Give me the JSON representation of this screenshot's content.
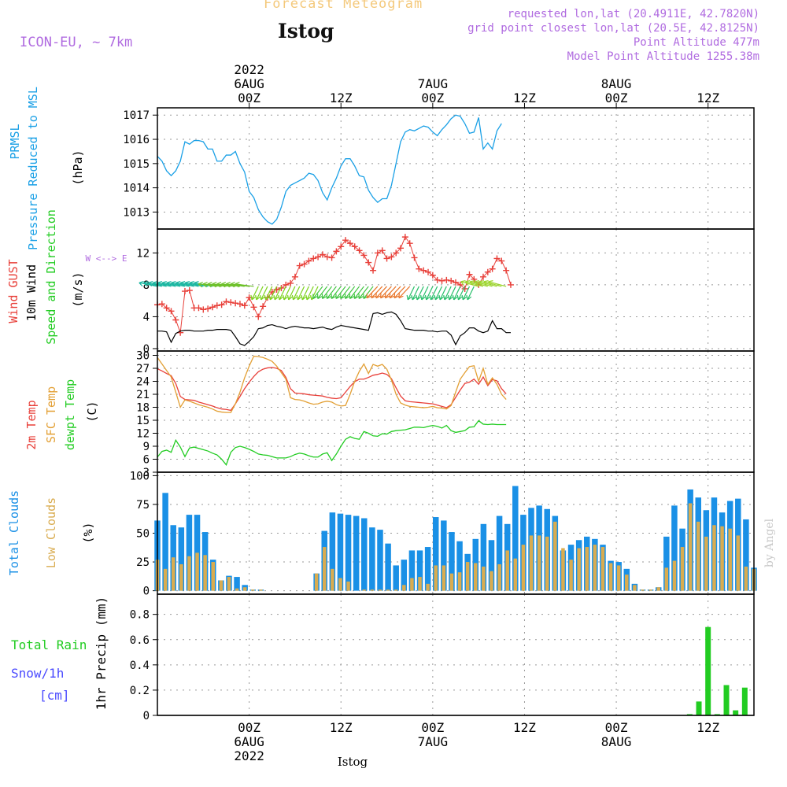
{
  "header": {
    "product": "Forecast Meteogram",
    "location": "Istog",
    "model": "ICON-EU, ~ 7km",
    "requested": "requested lon,lat (20.4911E, 42.7820N)",
    "grid": "grid point closest lon,lat (20.5E, 42.8125N)",
    "point_altitude": "Point Altitude 477m",
    "model_altitude": "Model Point Altitude 1255.38m"
  },
  "footer": {
    "location": "Istog",
    "credit": "by Angel"
  },
  "colors": {
    "pressure": "#1aa0e6",
    "gust": "#e8403a",
    "wind": "#000000",
    "temp": "#e8403a",
    "sfc": "#e3a035",
    "dew": "#22cc22",
    "cloud": "#1a90e6",
    "low": "#d9ac50",
    "rain": "#22cc22",
    "snow": "#4a4aff",
    "label_purple": "#b06be0",
    "header_orange": "#f4c97c"
  },
  "chart_data": {
    "type": "meteogram",
    "time_axis": {
      "hours_start": -10,
      "hours_end": 55,
      "top_ticks": [
        {
          "hour": 0,
          "lines": [
            "2022",
            "6AUG",
            "00Z"
          ]
        },
        {
          "hour": 10,
          "lines": [
            "12Z"
          ]
        },
        {
          "hour": 20,
          "lines": [
            "7AUG",
            "00Z"
          ]
        },
        {
          "hour": 30,
          "lines": [
            "12Z"
          ]
        },
        {
          "hour": 40,
          "lines": [
            "8AUG",
            "00Z"
          ]
        },
        {
          "hour": 50,
          "lines": [
            "12Z"
          ]
        }
      ],
      "bottom_ticks": [
        {
          "hour": 0,
          "lines": [
            "00Z",
            "6AUG",
            "2022"
          ]
        },
        {
          "hour": 10,
          "lines": [
            "12Z"
          ]
        },
        {
          "hour": 20,
          "lines": [
            "00Z",
            "7AUG"
          ]
        },
        {
          "hour": 30,
          "lines": [
            "12Z"
          ]
        },
        {
          "hour": 40,
          "lines": [
            "00Z",
            "8AUG"
          ]
        },
        {
          "hour": 50,
          "lines": [
            "12Z"
          ]
        }
      ],
      "step_hours": 0.5
    },
    "panels": [
      {
        "id": "pressure",
        "labels": [
          "PRMSL",
          "Pressure Reduced to MSL"
        ],
        "unit": "(hPa)",
        "ylim": [
          1012.3,
          1017.3
        ],
        "yticks": [
          1013,
          1014,
          1015,
          1016,
          1017
        ],
        "series": [
          {
            "name": "PRMSL",
            "color_key": "pressure",
            "kind": "line",
            "values": [
              1015.3,
              1015.1,
              1014.7,
              1014.5,
              1014.7,
              1015.1,
              1015.9,
              1015.8,
              1015.95,
              1015.95,
              1015.9,
              1015.6,
              1015.6,
              1015.1,
              1015.1,
              1015.35,
              1015.35,
              1015.5,
              1015.0,
              1014.65,
              1013.85,
              1013.6,
              1013.1,
              1012.8,
              1012.6,
              1012.5,
              1012.7,
              1013.2,
              1013.85,
              1014.1,
              1014.2,
              1014.3,
              1014.4,
              1014.6,
              1014.55,
              1014.3,
              1013.8,
              1013.5,
              1014.0,
              1014.4,
              1014.9,
              1015.2,
              1015.2,
              1014.9,
              1014.5,
              1014.45,
              1013.9,
              1013.6,
              1013.4,
              1013.55,
              1013.55,
              1014.1,
              1015.0,
              1015.9,
              1016.3,
              1016.4,
              1016.35,
              1016.45,
              1016.55,
              1016.5,
              1016.3,
              1016.15,
              1016.4,
              1016.6,
              1016.85,
              1017.0,
              1016.95,
              1016.65,
              1016.25,
              1016.3,
              1016.9,
              1015.6,
              1015.85,
              1015.6,
              1016.35,
              1016.65
            ]
          }
        ]
      },
      {
        "id": "wind",
        "labels": [
          "Wind GUST",
          "10m Wind",
          "Speed and Direction"
        ],
        "unit": "(m/s)",
        "compass": "W <--> E",
        "ylim": [
          -0.3,
          15.0
        ],
        "yticks": [
          0,
          4,
          8,
          12
        ],
        "series": [
          {
            "name": "Wind GUST",
            "color_key": "gust",
            "kind": "line_cross",
            "values": [
              5.5,
              5.6,
              5.1,
              4.7,
              3.6,
              2.0,
              7.2,
              7.3,
              5.1,
              5.1,
              4.9,
              5.0,
              5.2,
              5.4,
              5.5,
              5.9,
              5.8,
              5.7,
              5.6,
              5.4,
              6.4,
              5.2,
              4.0,
              5.3,
              6.4,
              7.1,
              7.4,
              7.6,
              8.0,
              8.2,
              9.0,
              10.4,
              10.6,
              11.0,
              11.3,
              11.5,
              11.8,
              11.5,
              11.4,
              12.2,
              12.8,
              13.6,
              13.2,
              12.8,
              12.3,
              11.7,
              10.8,
              9.8,
              12.0,
              12.3,
              11.3,
              11.5,
              12.0,
              12.6,
              14.0,
              13.2,
              11.4,
              10.0,
              9.8,
              9.6,
              9.2,
              8.6,
              8.5,
              8.6,
              8.5,
              8.3,
              8.0,
              7.5,
              9.3,
              8.7,
              8.0,
              9.0,
              9.6,
              10.0,
              11.3,
              11.0,
              9.8,
              8.0
            ]
          },
          {
            "name": "10m Wind",
            "color_key": "wind",
            "kind": "line",
            "values": [
              2.2,
              2.2,
              2.1,
              0.8,
              1.9,
              2.2,
              2.3,
              2.3,
              2.2,
              2.2,
              2.2,
              2.3,
              2.3,
              2.4,
              2.4,
              2.4,
              2.3,
              1.5,
              0.6,
              0.4,
              0.9,
              1.5,
              2.5,
              2.6,
              2.9,
              3.0,
              2.8,
              2.7,
              2.5,
              2.7,
              2.8,
              2.7,
              2.6,
              2.6,
              2.5,
              2.6,
              2.7,
              2.5,
              2.4,
              2.7,
              2.9,
              2.8,
              2.7,
              2.6,
              2.5,
              2.4,
              2.3,
              4.4,
              4.5,
              4.3,
              4.5,
              4.6,
              4.3,
              3.5,
              2.5,
              2.4,
              2.3,
              2.3,
              2.3,
              2.2,
              2.2,
              2.1,
              2.2,
              2.2,
              1.7,
              0.5,
              1.6,
              2.0,
              2.6,
              2.6,
              2.2,
              2.0,
              2.2,
              3.5,
              2.5,
              2.5,
              2.0,
              2.0
            ]
          }
        ]
      },
      {
        "id": "temp",
        "labels": [
          "2m Temp",
          "SFC Temp",
          "dewpt Temp"
        ],
        "unit": "(C)",
        "ylim": [
          3,
          31
        ],
        "yticks": [
          3,
          6,
          9,
          12,
          15,
          18,
          21,
          24,
          27,
          30
        ],
        "series": [
          {
            "name": "2m Temp",
            "color_key": "temp",
            "kind": "line",
            "values": [
              26.9,
              26.4,
              25.8,
              25.3,
              23.5,
              20.5,
              19.8,
              19.7,
              19.6,
              19.2,
              18.9,
              18.6,
              18.3,
              17.9,
              17.6,
              17.5,
              17.3,
              18.8,
              20.5,
              22.3,
              23.8,
              25.1,
              26.2,
              26.8,
              27.1,
              27.2,
              27.0,
              26.5,
              24.9,
              22.3,
              21.3,
              21.2,
              21.1,
              20.9,
              20.8,
              20.7,
              20.6,
              20.3,
              20.1,
              20.0,
              20.2,
              21.5,
              22.8,
              23.9,
              24.5,
              24.5,
              24.9,
              25.4,
              25.6,
              25.9,
              25.6,
              24.6,
              22.5,
              20.6,
              19.5,
              19.3,
              19.2,
              19.1,
              19.0,
              18.9,
              18.8,
              18.5,
              18.2,
              17.9,
              18.6,
              20.3,
              22.0,
              23.5,
              23.8,
              24.5,
              23.3,
              25.0,
              23.0,
              24.4,
              24.1,
              22.3,
              21.1
            ]
          },
          {
            "name": "SFC Temp",
            "color_key": "sfc",
            "kind": "line",
            "values": [
              29.5,
              28.0,
              26.5,
              25.0,
              21.5,
              18.0,
              19.7,
              19.4,
              19.0,
              18.6,
              18.3,
              18.0,
              17.6,
              17.1,
              16.9,
              16.8,
              16.8,
              18.8,
              21.5,
              24.8,
              27.5,
              29.8,
              29.7,
              29.5,
              29.1,
              28.6,
              27.5,
              26.0,
              24.5,
              20.2,
              19.8,
              19.7,
              19.4,
              19.0,
              18.7,
              18.8,
              19.2,
              19.4,
              19.2,
              18.6,
              18.3,
              18.4,
              21.0,
              24.0,
              26.3,
              28.0,
              25.8,
              27.9,
              27.5,
              27.9,
              26.8,
              24.3,
              21.0,
              19.0,
              18.5,
              18.2,
              18.1,
              18.0,
              17.9,
              18.0,
              18.2,
              17.9,
              17.8,
              17.6,
              18.4,
              21.5,
              24.5,
              26.0,
              27.4,
              27.6,
              24.0,
              27.0,
              23.3,
              24.8,
              23.3,
              21.0,
              19.8
            ]
          },
          {
            "name": "dewpt Temp",
            "color_key": "dew",
            "kind": "line",
            "values": [
              6.5,
              7.8,
              8.1,
              7.6,
              10.4,
              8.8,
              6.6,
              8.6,
              8.8,
              8.5,
              8.2,
              7.9,
              7.4,
              7.0,
              6.0,
              4.7,
              7.6,
              8.7,
              9.0,
              8.7,
              8.3,
              7.8,
              7.2,
              7.0,
              6.9,
              6.6,
              6.3,
              6.3,
              6.3,
              6.6,
              7.1,
              7.4,
              7.2,
              6.8,
              6.5,
              6.5,
              7.2,
              7.5,
              5.7,
              7.2,
              9.0,
              10.6,
              11.2,
              10.8,
              10.6,
              12.4,
              12.0,
              11.4,
              11.3,
              11.9,
              11.8,
              12.4,
              12.6,
              12.7,
              12.8,
              13.1,
              13.4,
              13.4,
              13.3,
              13.6,
              13.8,
              13.6,
              13.2,
              13.8,
              12.6,
              12.2,
              12.4,
              12.6,
              13.4,
              13.5,
              14.9,
              14.1,
              14.0,
              14.1,
              14.0,
              14.0,
              14.0
            ]
          }
        ]
      },
      {
        "id": "clouds",
        "labels": [
          "Total Clouds",
          "Low Clouds"
        ],
        "unit": "(%)",
        "ylim": [
          -3,
          103
        ],
        "yticks": [
          0,
          25,
          50,
          75,
          100
        ],
        "bars": {
          "total_color_key": "cloud",
          "low_color_key": "low",
          "total": [
            61,
            85,
            57,
            55,
            66,
            66,
            51,
            27,
            9,
            13,
            12,
            5,
            1,
            1,
            0,
            0,
            0,
            0,
            0,
            0,
            15,
            52,
            68,
            67,
            66,
            65,
            63,
            55,
            53,
            41,
            22,
            27,
            35,
            35,
            38,
            64,
            61,
            51,
            43,
            32,
            45,
            58,
            44,
            65,
            58,
            91,
            66,
            72,
            74,
            71,
            65,
            35,
            40,
            44,
            47,
            45,
            40,
            26,
            25,
            19,
            6,
            1,
            1,
            3,
            47,
            74,
            54,
            88,
            81,
            70,
            81,
            68,
            78,
            80,
            62,
            20
          ],
          "low": [
            27,
            19,
            29,
            23,
            30,
            33,
            31,
            25,
            9,
            12,
            2,
            3,
            1,
            1,
            0,
            0,
            0,
            0,
            0,
            0,
            15,
            38,
            19,
            11,
            8,
            0,
            1,
            1,
            1,
            1,
            1,
            5,
            11,
            12,
            6,
            22,
            22,
            15,
            16,
            25,
            24,
            21,
            17,
            23,
            35,
            28,
            40,
            48,
            48,
            47,
            60,
            37,
            27,
            37,
            38,
            40,
            38,
            24,
            22,
            14,
            5,
            1,
            1,
            3,
            20,
            26,
            38,
            76,
            60,
            47,
            57,
            56,
            54,
            48,
            21,
            19
          ]
        }
      },
      {
        "id": "precip",
        "labels": [
          "Total  Rain",
          "Snow/1h",
          "[cm]"
        ],
        "unit": "1hr Precip (mm)",
        "ylim": [
          0,
          0.96
        ],
        "yticks": [
          0,
          0.2,
          0.4,
          0.6,
          0.8
        ],
        "yticklabels": [
          "0",
          "0.2",
          "0.4",
          "0.6",
          "0.8"
        ],
        "rain_hours": [
          48,
          49,
          50,
          51,
          52,
          53,
          54
        ],
        "rain_mm": [
          0.01,
          0.11,
          0.7,
          0.01,
          0.24,
          0.04,
          0.22
        ]
      }
    ]
  }
}
